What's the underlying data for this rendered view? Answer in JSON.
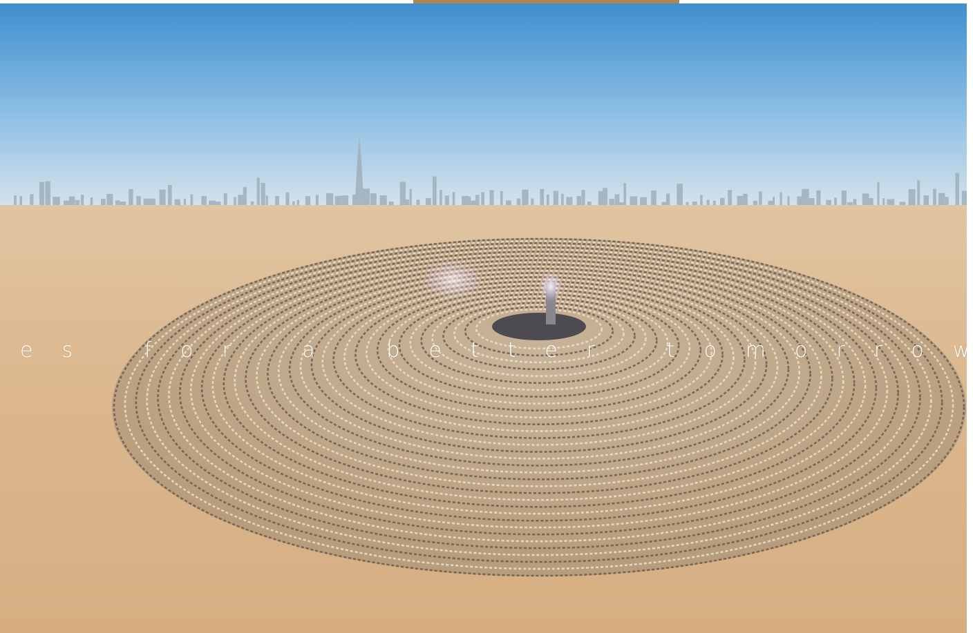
{
  "hero": {
    "tagline": "es for a better tomorrow"
  }
}
